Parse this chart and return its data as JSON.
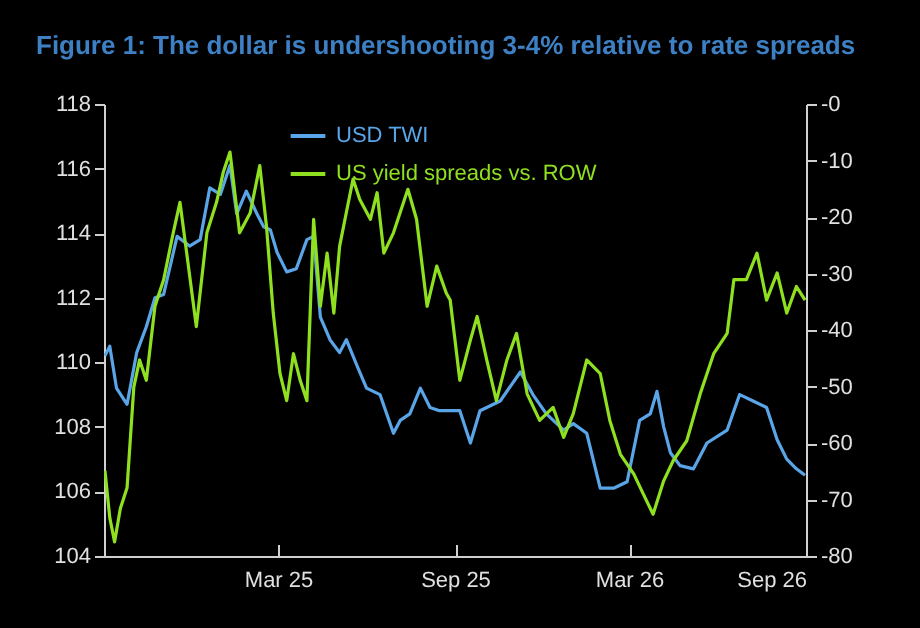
{
  "chart_data": {
    "type": "line",
    "title": "Figure 1: The dollar is undershooting 3-4% relative to rate spreads",
    "xlim": [
      "2024-09-01",
      "2026-09-01"
    ],
    "xticks": [
      {
        "value": "2025-03-01",
        "label": "Mar 25"
      },
      {
        "value": "2025-09-01",
        "label": "Sep 25"
      },
      {
        "value": "2026-03-01",
        "label": "Mar 26"
      },
      {
        "value": "2026-09-01",
        "label": "Sep 26"
      }
    ],
    "ylim": [
      104,
      118
    ],
    "yticks": [
      104,
      106,
      108,
      110,
      112,
      114,
      116,
      118
    ],
    "y2lim": [
      -80,
      0
    ],
    "y2ticks": [
      -80,
      -70,
      -60,
      -50,
      -40,
      -30,
      -20,
      -10,
      {
        "value": 0,
        "label": "-0"
      }
    ],
    "legend": "top",
    "series": [
      {
        "name": "USD TWI",
        "color": "#5aa5e8",
        "x": [
          "2024-09-02",
          "2024-09-07",
          "2024-09-14",
          "2024-09-25",
          "2024-10-05",
          "2024-10-15",
          "2024-10-24",
          "2024-11-02",
          "2024-11-16",
          "2024-11-29",
          "2024-12-10",
          "2024-12-20",
          "2024-12-31",
          "2025-01-10",
          "2025-01-17",
          "2025-01-27",
          "2025-02-07",
          "2025-02-14",
          "2025-02-21",
          "2025-02-28",
          "2025-03-10",
          "2025-03-20",
          "2025-03-31",
          "2025-04-07",
          "2025-04-14",
          "2025-04-24",
          "2025-05-04",
          "2025-05-11",
          "2025-05-22",
          "2025-06-01",
          "2025-06-15",
          "2025-06-29",
          "2025-07-06",
          "2025-07-16",
          "2025-07-27",
          "2025-08-06",
          "2025-08-16",
          "2025-09-06",
          "2025-09-17",
          "2025-09-27",
          "2025-10-18",
          "2025-11-08",
          "2025-11-21",
          "2025-12-05",
          "2025-12-23",
          "2026-01-02",
          "2026-01-16",
          "2026-01-30",
          "2026-02-13",
          "2026-02-27",
          "2026-03-12",
          "2026-03-23",
          "2026-03-30",
          "2026-04-06",
          "2026-04-13",
          "2026-04-23",
          "2026-05-07",
          "2026-05-21",
          "2026-06-11",
          "2026-06-24",
          "2026-07-08",
          "2026-07-22",
          "2026-08-02",
          "2026-08-12",
          "2026-08-22",
          "2026-08-31"
        ],
        "values": [
          110.2,
          110.5,
          109.2,
          108.7,
          110.3,
          111.1,
          112.0,
          112.1,
          113.9,
          113.6,
          113.8,
          115.4,
          115.2,
          116.1,
          114.6,
          115.3,
          114.6,
          114.2,
          114.1,
          113.4,
          112.8,
          112.9,
          113.8,
          113.9,
          111.4,
          110.7,
          110.3,
          110.7,
          109.9,
          109.2,
          109.0,
          107.8,
          108.2,
          108.4,
          109.2,
          108.6,
          108.5,
          108.5,
          107.5,
          108.5,
          108.8,
          109.7,
          109.0,
          108.4,
          107.9,
          108.1,
          107.8,
          106.1,
          106.1,
          106.3,
          108.2,
          108.4,
          109.1,
          108.0,
          107.2,
          106.8,
          106.7,
          107.5,
          107.9,
          109.0,
          108.8,
          108.6,
          107.6,
          107.0,
          106.7,
          106.5
        ]
      },
      {
        "name": "US yield spreads vs. ROW",
        "color": "#8fe01e",
        "axis": "y2",
        "x": [
          "2024-09-02",
          "2024-09-07",
          "2024-09-12",
          "2024-09-18",
          "2024-09-25",
          "2024-10-02",
          "2024-10-08",
          "2024-10-15",
          "2024-10-24",
          "2024-11-02",
          "2024-11-12",
          "2024-11-19",
          "2024-11-26",
          "2024-12-06",
          "2024-12-17",
          "2024-12-27",
          "2025-01-03",
          "2025-01-10",
          "2025-01-20",
          "2025-01-31",
          "2025-02-10",
          "2025-02-17",
          "2025-02-24",
          "2025-03-03",
          "2025-03-10",
          "2025-03-17",
          "2025-03-24",
          "2025-03-31",
          "2025-04-07",
          "2025-04-14",
          "2025-04-21",
          "2025-04-28",
          "2025-05-04",
          "2025-05-11",
          "2025-05-18",
          "2025-05-25",
          "2025-06-05",
          "2025-06-12",
          "2025-06-19",
          "2025-06-29",
          "2025-07-06",
          "2025-07-14",
          "2025-07-23",
          "2025-08-03",
          "2025-08-13",
          "2025-08-23",
          "2025-08-27",
          "2025-09-06",
          "2025-09-17",
          "2025-09-24",
          "2025-10-04",
          "2025-10-14",
          "2025-10-25",
          "2025-11-04",
          "2025-11-15",
          "2025-11-28",
          "2025-12-12",
          "2025-12-23",
          "2026-01-02",
          "2026-01-16",
          "2026-01-30",
          "2026-02-09",
          "2026-02-20",
          "2026-03-06",
          "2026-03-16",
          "2026-03-26",
          "2026-04-06",
          "2026-04-16",
          "2026-04-30",
          "2026-05-14",
          "2026-05-28",
          "2026-06-11",
          "2026-06-18",
          "2026-07-01",
          "2026-07-12",
          "2026-07-22",
          "2026-08-02",
          "2026-08-12",
          "2026-08-22",
          "2026-08-31"
        ],
        "values": [
          -64.9,
          -73.2,
          -77.5,
          -71.6,
          -67.9,
          -50.1,
          -45.3,
          -48.9,
          -35.8,
          -31.1,
          -22.8,
          -17.4,
          -26.4,
          -39.4,
          -22.8,
          -17.4,
          -12.1,
          -8.5,
          -22.8,
          -19.3,
          -10.9,
          -21.7,
          -37.0,
          -47.7,
          -52.5,
          -44.2,
          -48.9,
          -52.5,
          -20.4,
          -35.8,
          -26.4,
          -37.0,
          -25.2,
          -19.2,
          -13.3,
          -16.9,
          -20.4,
          -15.7,
          -26.4,
          -22.8,
          -19.2,
          -15.1,
          -20.4,
          -35.8,
          -28.7,
          -33.5,
          -34.7,
          -48.9,
          -41.8,
          -37.6,
          -45.3,
          -52.5,
          -45.3,
          -40.6,
          -51.3,
          -56.0,
          -53.7,
          -59.0,
          -54.8,
          -45.3,
          -47.7,
          -56.0,
          -62.0,
          -65.5,
          -69.1,
          -72.6,
          -66.7,
          -63.1,
          -59.6,
          -51.3,
          -44.2,
          -40.6,
          -31.1,
          -31.1,
          -26.4,
          -34.7,
          -29.9,
          -37.0,
          -32.3,
          -34.7
        ]
      }
    ]
  }
}
